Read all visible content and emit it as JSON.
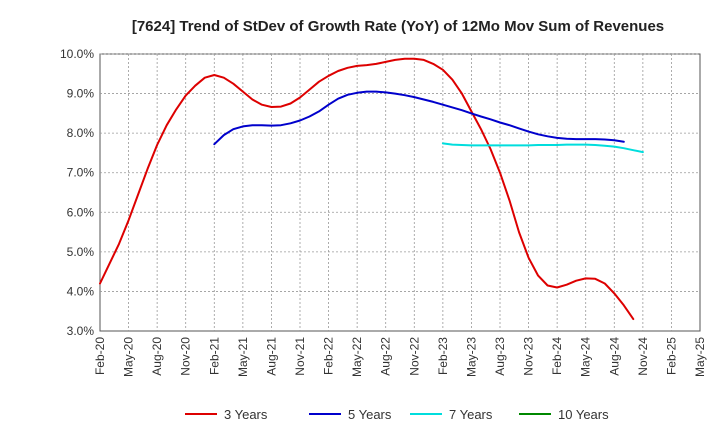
{
  "chart_data": {
    "type": "line",
    "title": "[7624]  Trend of StDev of Growth Rate (YoY) of 12Mo Mov Sum of Revenues",
    "xlabel": "",
    "ylabel": "",
    "ylim": [
      3.0,
      10.0
    ],
    "y_ticks": [
      "3.0%",
      "4.0%",
      "5.0%",
      "6.0%",
      "7.0%",
      "8.0%",
      "9.0%",
      "10.0%"
    ],
    "x_ticks": [
      "Feb-20",
      "May-20",
      "Aug-20",
      "Nov-20",
      "Feb-21",
      "May-21",
      "Aug-21",
      "Nov-21",
      "Feb-22",
      "May-22",
      "Aug-22",
      "Nov-22",
      "Feb-23",
      "May-23",
      "Aug-23",
      "Nov-23",
      "Feb-24",
      "May-24",
      "Aug-24",
      "Nov-24",
      "Feb-25",
      "May-25"
    ],
    "grid": true,
    "legend_position": "bottom",
    "series": [
      {
        "name": "3 Years",
        "color": "#dd0000",
        "start_month": 0,
        "values": [
          4.2,
          4.7,
          5.2,
          5.8,
          6.45,
          7.1,
          7.7,
          8.2,
          8.6,
          8.95,
          9.2,
          9.4,
          9.47,
          9.4,
          9.25,
          9.05,
          8.85,
          8.72,
          8.66,
          8.67,
          8.75,
          8.9,
          9.1,
          9.3,
          9.45,
          9.57,
          9.65,
          9.7,
          9.72,
          9.75,
          9.8,
          9.85,
          9.88,
          9.88,
          9.85,
          9.75,
          9.6,
          9.35,
          9.0,
          8.55,
          8.1,
          7.6,
          7.0,
          6.3,
          5.5,
          4.85,
          4.4,
          4.15,
          4.1,
          4.17,
          4.27,
          4.33,
          4.32,
          4.2,
          3.95,
          3.65,
          3.3
        ]
      },
      {
        "name": "5 Years",
        "color": "#0000cc",
        "start_month": 12,
        "values": [
          7.72,
          7.95,
          8.1,
          8.17,
          8.2,
          8.2,
          8.19,
          8.2,
          8.25,
          8.32,
          8.42,
          8.55,
          8.72,
          8.87,
          8.97,
          9.02,
          9.05,
          9.05,
          9.03,
          9.0,
          8.96,
          8.91,
          8.85,
          8.79,
          8.72,
          8.65,
          8.58,
          8.5,
          8.42,
          8.35,
          8.27,
          8.2,
          8.12,
          8.04,
          7.97,
          7.92,
          7.88,
          7.86,
          7.85,
          7.85,
          7.85,
          7.84,
          7.82,
          7.78
        ]
      },
      {
        "name": "7 Years",
        "color": "#00dddd",
        "start_month": 36,
        "values": [
          7.74,
          7.71,
          7.7,
          7.69,
          7.69,
          7.69,
          7.69,
          7.69,
          7.69,
          7.69,
          7.7,
          7.7,
          7.7,
          7.71,
          7.71,
          7.71,
          7.7,
          7.68,
          7.66,
          7.62,
          7.57,
          7.52
        ]
      },
      {
        "name": "10 Years",
        "color": "#008800",
        "start_month": 0,
        "values": []
      }
    ]
  }
}
